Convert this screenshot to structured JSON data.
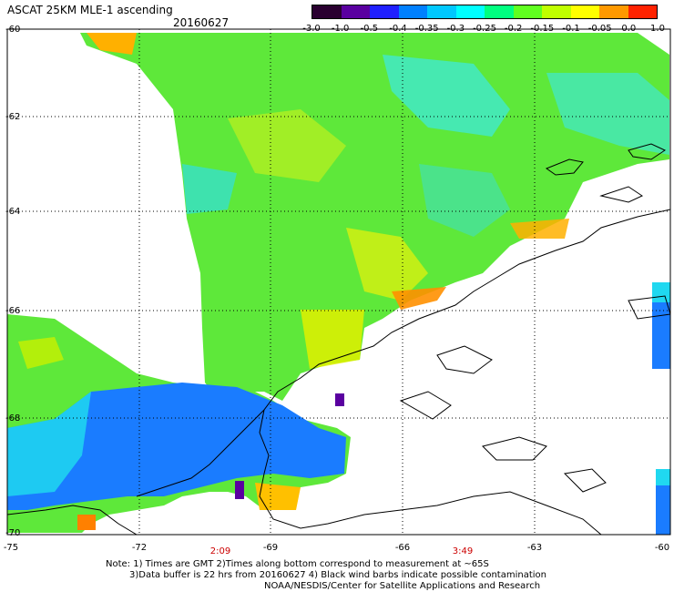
{
  "header": {
    "title": "ASCAT 25KM MLE-1 ascending",
    "date": "20160627"
  },
  "colorbar": {
    "ticks": [
      "-3.0",
      "-1.0",
      "-0.5",
      "-0.4",
      "-0.35",
      "-0.3",
      "-0.25",
      "-0.2",
      "-0.15",
      "-0.1",
      "-0.05",
      "0.0",
      "1.0"
    ],
    "colors": [
      "#2a0030",
      "#5a00a0",
      "#2020ff",
      "#0080ff",
      "#00c8ff",
      "#00ffff",
      "#00ff80",
      "#60ff20",
      "#c0ff00",
      "#ffff00",
      "#ff9900",
      "#ff2200"
    ]
  },
  "axes": {
    "lat_labels": [
      "-60",
      "-62",
      "-64",
      "-66",
      "-68",
      "-70"
    ],
    "lon_labels": [
      "-75",
      "-72",
      "-69",
      "-66",
      "-63",
      "-60"
    ]
  },
  "times": [
    {
      "label": "2:09",
      "lon": "-70.5"
    },
    {
      "label": "3:49",
      "lon": "-65"
    }
  ],
  "notes": {
    "line1": "Note: 1) Times are GMT 2)Times along bottom correspond to measurement at ~65S",
    "line2": "3)Data buffer is 22 hrs from 20160627 4) Black wind barbs indicate possible contamination",
    "line3": "NOAA/NESDIS/Center for Satellite Applications and Research"
  }
}
